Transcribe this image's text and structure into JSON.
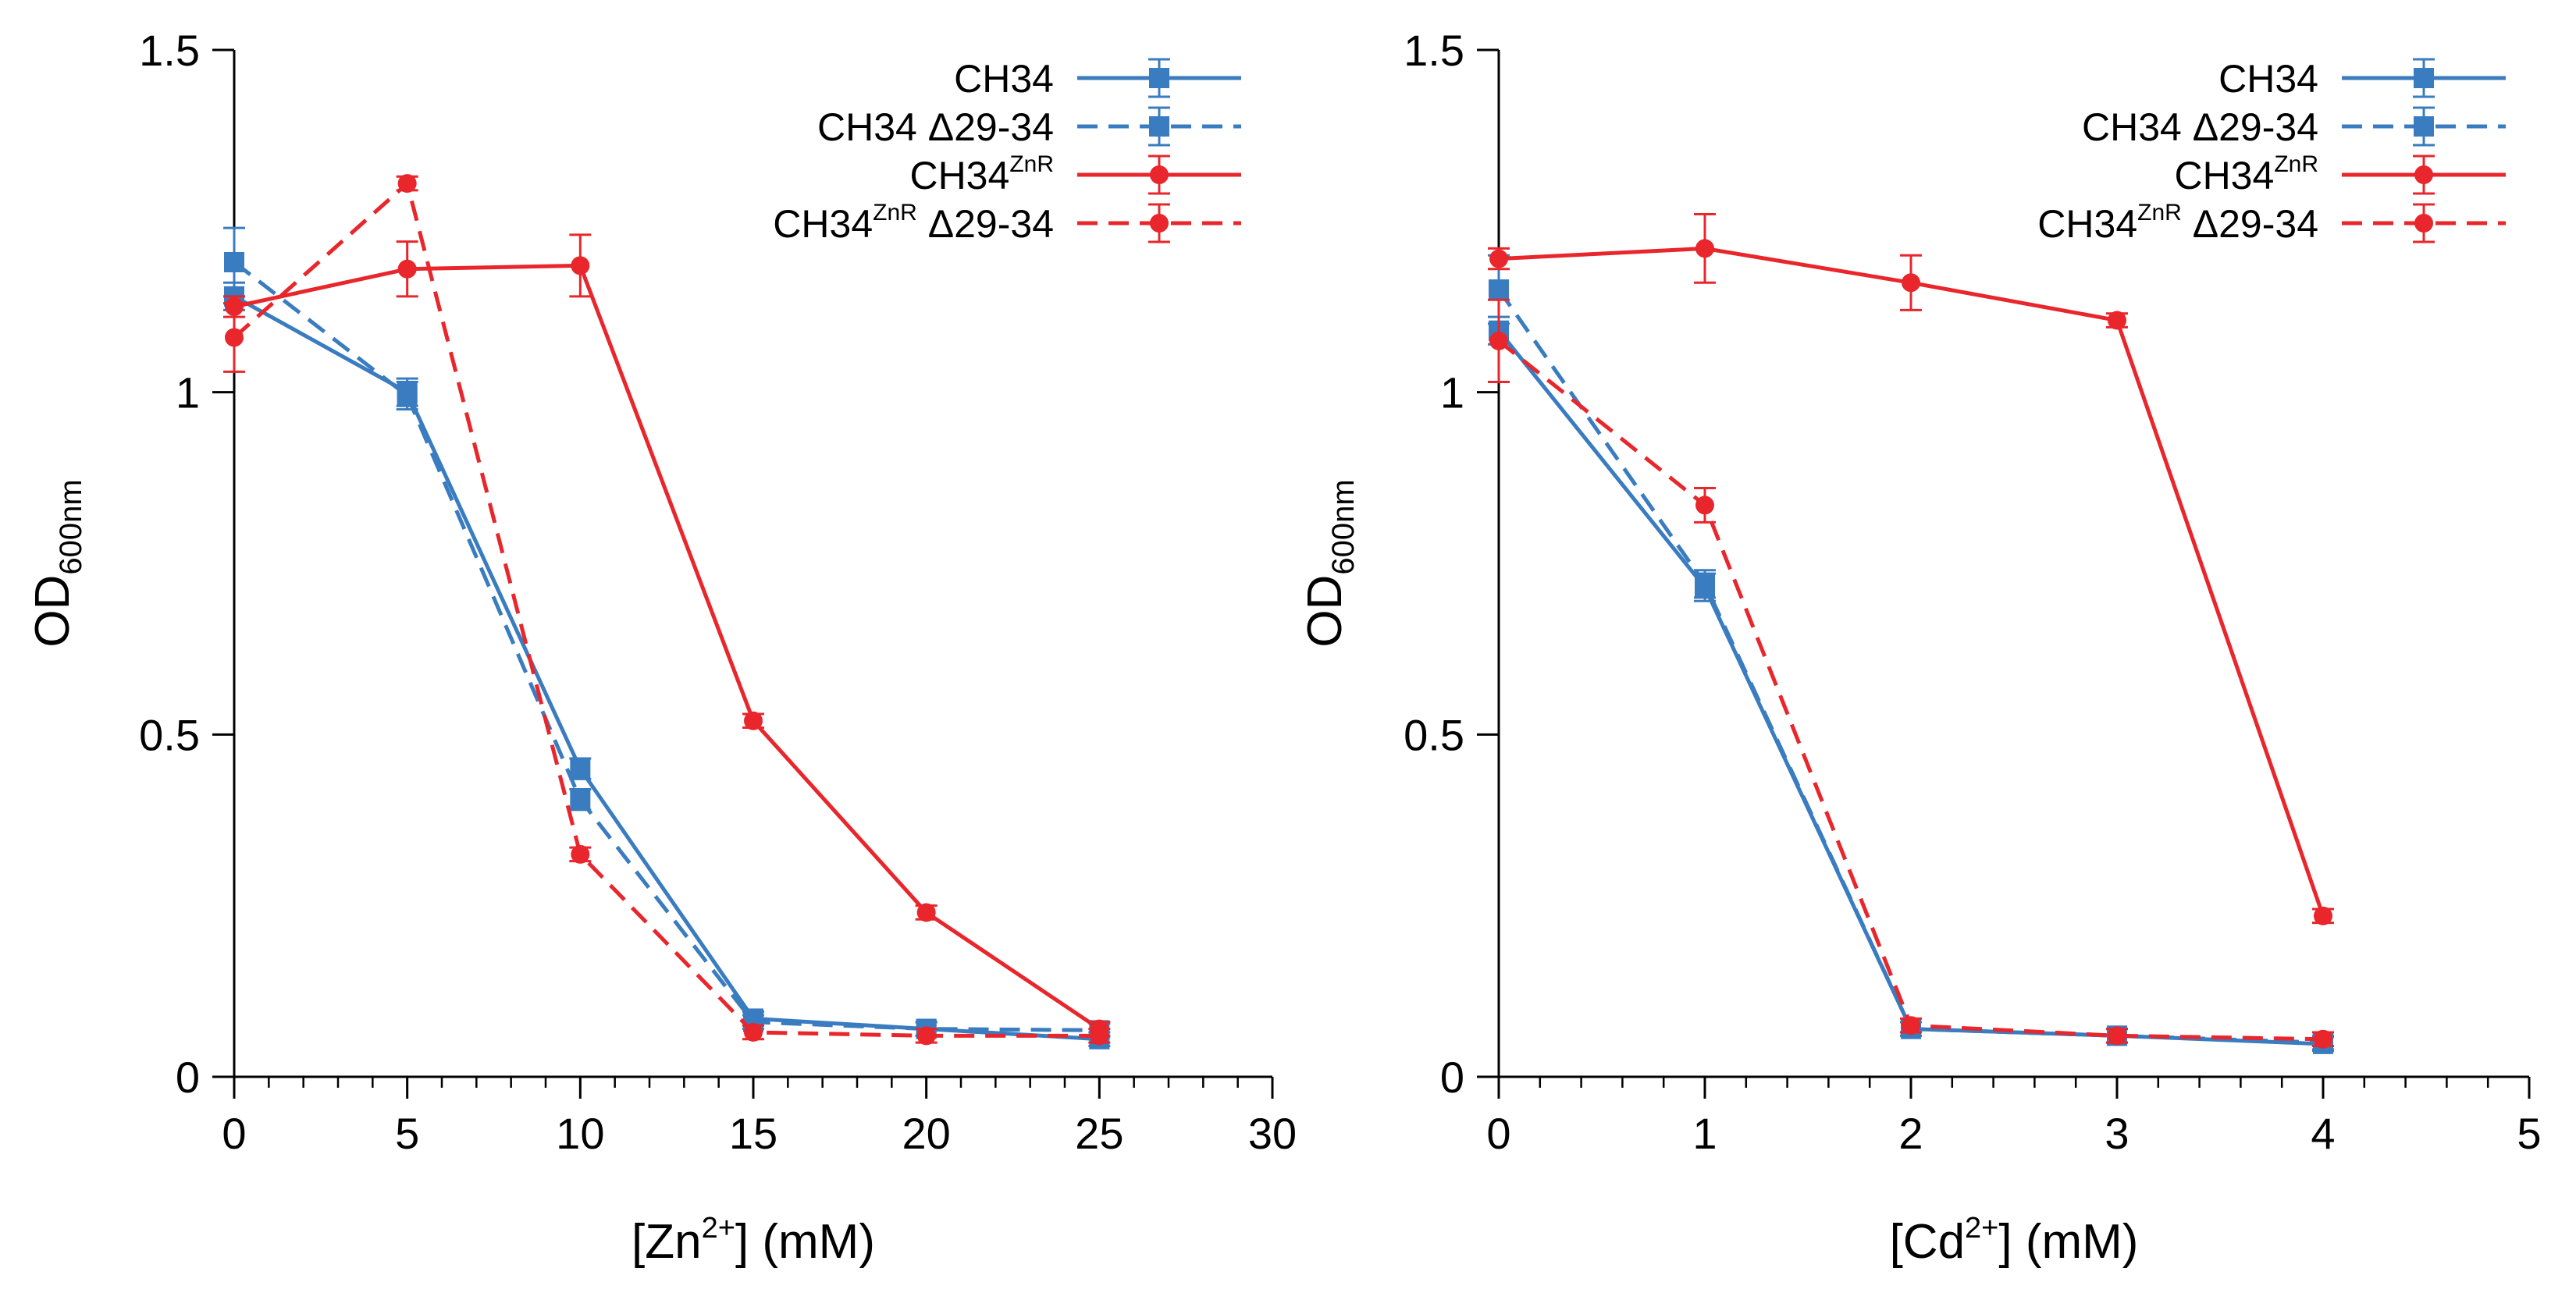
{
  "colors": {
    "blue": "#3a7cc0",
    "red": "#e8262b",
    "axis": "#000000"
  },
  "chart_data": [
    {
      "type": "line",
      "metal": "Zn",
      "xlabel_pre": "[Zn",
      "xlabel_sup": "2+",
      "xlabel_post": "] (mM)",
      "ylabel_main": "OD",
      "ylabel_sub": "600nm",
      "xlim": [
        0,
        30
      ],
      "ylim": [
        0,
        1.5
      ],
      "x_ticks": [
        0,
        5,
        10,
        15,
        20,
        25,
        30
      ],
      "x_minor_step": 1,
      "y_ticks": [
        0,
        0.5,
        1,
        1.5
      ],
      "x_tick_labels": [
        "0",
        "5",
        "10",
        "15",
        "20",
        "25",
        "30"
      ],
      "y_tick_labels": [
        "0",
        "0.5",
        "1",
        "1.5"
      ],
      "legend_position": "top-right",
      "series": [
        {
          "name": "CH34",
          "base": "CH34",
          "sup": "",
          "suffix": "",
          "color": "blue",
          "marker": "square",
          "dash": "solid",
          "x": [
            0,
            5,
            10,
            15,
            20,
            25
          ],
          "y": [
            1.14,
            1.0,
            0.45,
            0.085,
            0.07,
            0.055
          ],
          "err": [
            0.02,
            0.02,
            0.015,
            0.01,
            0.01,
            0.01
          ]
        },
        {
          "name": "CH34 Δ29-34",
          "base": "CH34",
          "sup": "",
          "suffix": " Δ29-34",
          "color": "blue",
          "marker": "square",
          "dash": "dashed",
          "x": [
            0,
            5,
            10,
            15,
            20,
            25
          ],
          "y": [
            1.19,
            0.995,
            0.405,
            0.08,
            0.07,
            0.068
          ],
          "err": [
            0.05,
            0.02,
            0.015,
            0.01,
            0.01,
            0.01
          ]
        },
        {
          "name": "CH34ZnR",
          "base": "CH34",
          "sup": "ZnR",
          "suffix": "",
          "color": "red",
          "marker": "circle",
          "dash": "solid",
          "x": [
            0,
            5,
            10,
            15,
            20,
            25
          ],
          "y": [
            1.125,
            1.18,
            1.185,
            0.52,
            0.24,
            0.07
          ],
          "err": [
            0.015,
            0.04,
            0.045,
            0.01,
            0.01,
            0.01
          ]
        },
        {
          "name": "CH34ZnR Δ29-34",
          "base": "CH34",
          "sup": "ZnR",
          "suffix": " Δ29-34",
          "color": "red",
          "marker": "circle",
          "dash": "dashed",
          "x": [
            0,
            5,
            10,
            15,
            20,
            25
          ],
          "y": [
            1.08,
            1.305,
            0.325,
            0.065,
            0.06,
            0.06
          ],
          "err": [
            0.05,
            0.01,
            0.01,
            0.01,
            0.01,
            0.01
          ]
        }
      ]
    },
    {
      "type": "line",
      "metal": "Cd",
      "xlabel_pre": "[Cd",
      "xlabel_sup": "2+",
      "xlabel_post": "] (mM)",
      "ylabel_main": "OD",
      "ylabel_sub": "600nm",
      "xlim": [
        0,
        5
      ],
      "ylim": [
        0,
        1.5
      ],
      "x_ticks": [
        0,
        1,
        2,
        3,
        4,
        5
      ],
      "x_minor_step": 0.2,
      "y_ticks": [
        0,
        0.5,
        1,
        1.5
      ],
      "x_tick_labels": [
        "0",
        "1",
        "2",
        "3",
        "4",
        "5"
      ],
      "y_tick_labels": [
        "0",
        "0.5",
        "1",
        "1.5"
      ],
      "legend_position": "top-right",
      "series": [
        {
          "name": "CH34",
          "base": "CH34",
          "sup": "",
          "suffix": "",
          "color": "blue",
          "marker": "square",
          "dash": "solid",
          "x": [
            0,
            1,
            2,
            3,
            4
          ],
          "y": [
            1.09,
            0.715,
            0.07,
            0.06,
            0.048
          ],
          "err": [
            0.02,
            0.02,
            0.01,
            0.01,
            0.01
          ]
        },
        {
          "name": "CH34 Δ29-34",
          "base": "CH34",
          "sup": "",
          "suffix": " Δ29-34",
          "color": "blue",
          "marker": "square",
          "dash": "dashed",
          "x": [
            0,
            1,
            2,
            3,
            4
          ],
          "y": [
            1.15,
            0.72,
            0.07,
            0.06,
            0.05
          ],
          "err": [
            0.05,
            0.02,
            0.01,
            0.01,
            0.01
          ]
        },
        {
          "name": "CH34ZnR",
          "base": "CH34",
          "sup": "ZnR",
          "suffix": "",
          "color": "red",
          "marker": "circle",
          "dash": "solid",
          "x": [
            0,
            1,
            2,
            3,
            4
          ],
          "y": [
            1.195,
            1.21,
            1.16,
            1.105,
            0.235
          ],
          "err": [
            0.015,
            0.05,
            0.04,
            0.01,
            0.01
          ]
        },
        {
          "name": "CH34ZnR Δ29-34",
          "base": "CH34",
          "sup": "ZnR",
          "suffix": " Δ29-34",
          "color": "red",
          "marker": "circle",
          "dash": "dashed",
          "x": [
            0,
            1,
            2,
            3,
            4
          ],
          "y": [
            1.075,
            0.835,
            0.075,
            0.06,
            0.055
          ],
          "err": [
            0.06,
            0.025,
            0.01,
            0.01,
            0.01
          ]
        }
      ]
    }
  ]
}
